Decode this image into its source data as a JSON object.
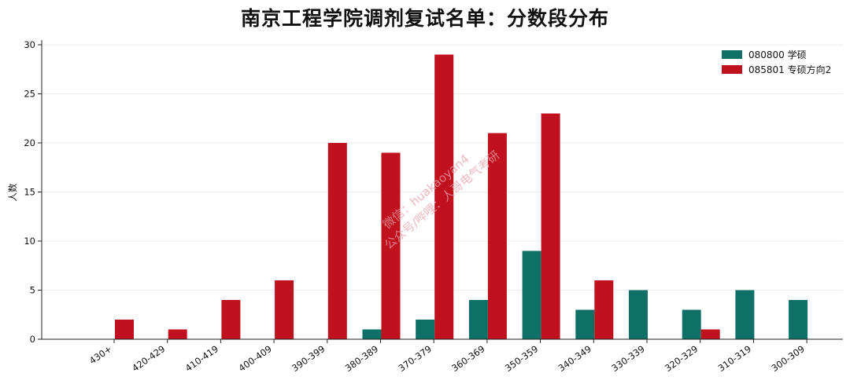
{
  "chart_data": {
    "type": "bar",
    "title": "南京工程学院调剂复试名单：分数段分布",
    "xlabel": "",
    "ylabel": "人数",
    "ylim": [
      0,
      30
    ],
    "yticks": [
      0,
      5,
      10,
      15,
      20,
      25,
      30
    ],
    "grid": true,
    "legend_position": "top-right",
    "categories": [
      "430+",
      "420-429",
      "410-419",
      "400-409",
      "390-399",
      "380-389",
      "370-379",
      "360-369",
      "350-359",
      "340-349",
      "330-339",
      "320-329",
      "310-319",
      "300-309"
    ],
    "series": [
      {
        "name": "080800 学硕",
        "color": "#0e7066",
        "values": [
          0,
          0,
          0,
          0,
          0,
          1,
          2,
          4,
          9,
          3,
          5,
          3,
          5,
          4
        ]
      },
      {
        "name": "085801 专硕方向2",
        "color": "#c0121e",
        "values": [
          2,
          1,
          4,
          6,
          20,
          19,
          29,
          21,
          23,
          6,
          0,
          1,
          0,
          0
        ]
      }
    ]
  },
  "watermark": {
    "line1": "微信：huakaoyan4",
    "line2": "公众号/哔哩：人哥电气考研"
  }
}
